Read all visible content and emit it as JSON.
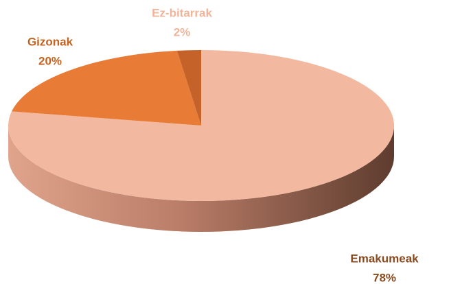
{
  "chart_data": {
    "type": "pie",
    "categories": [
      "Emakumeak",
      "Gizonak",
      "Ez-bitarrak"
    ],
    "values": [
      78,
      20,
      2
    ],
    "value_labels": [
      "78%",
      "20%",
      "2%"
    ],
    "colors": [
      "#f2b9a0",
      "#e87b35",
      "#c4622a"
    ],
    "label_colors": [
      "#8a4a1f",
      "#c4621f",
      "#f0b49a"
    ]
  }
}
